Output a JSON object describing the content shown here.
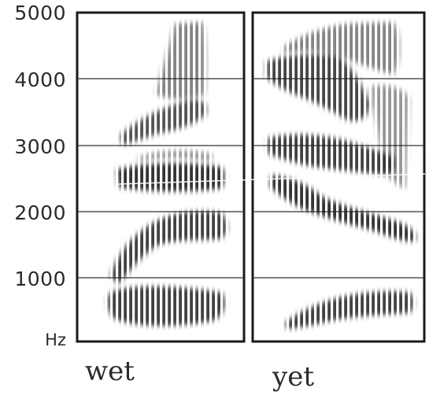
{
  "y_axis": {
    "ticks": [
      "5000",
      "4000",
      "3000",
      "2000",
      "1000"
    ],
    "unit": "Hz"
  },
  "panels": [
    {
      "word": "wet"
    },
    {
      "word": "yet"
    }
  ],
  "colors": {
    "ink": "#2a2a2a",
    "frame": "#1a1a1a",
    "background": "#ffffff"
  }
}
